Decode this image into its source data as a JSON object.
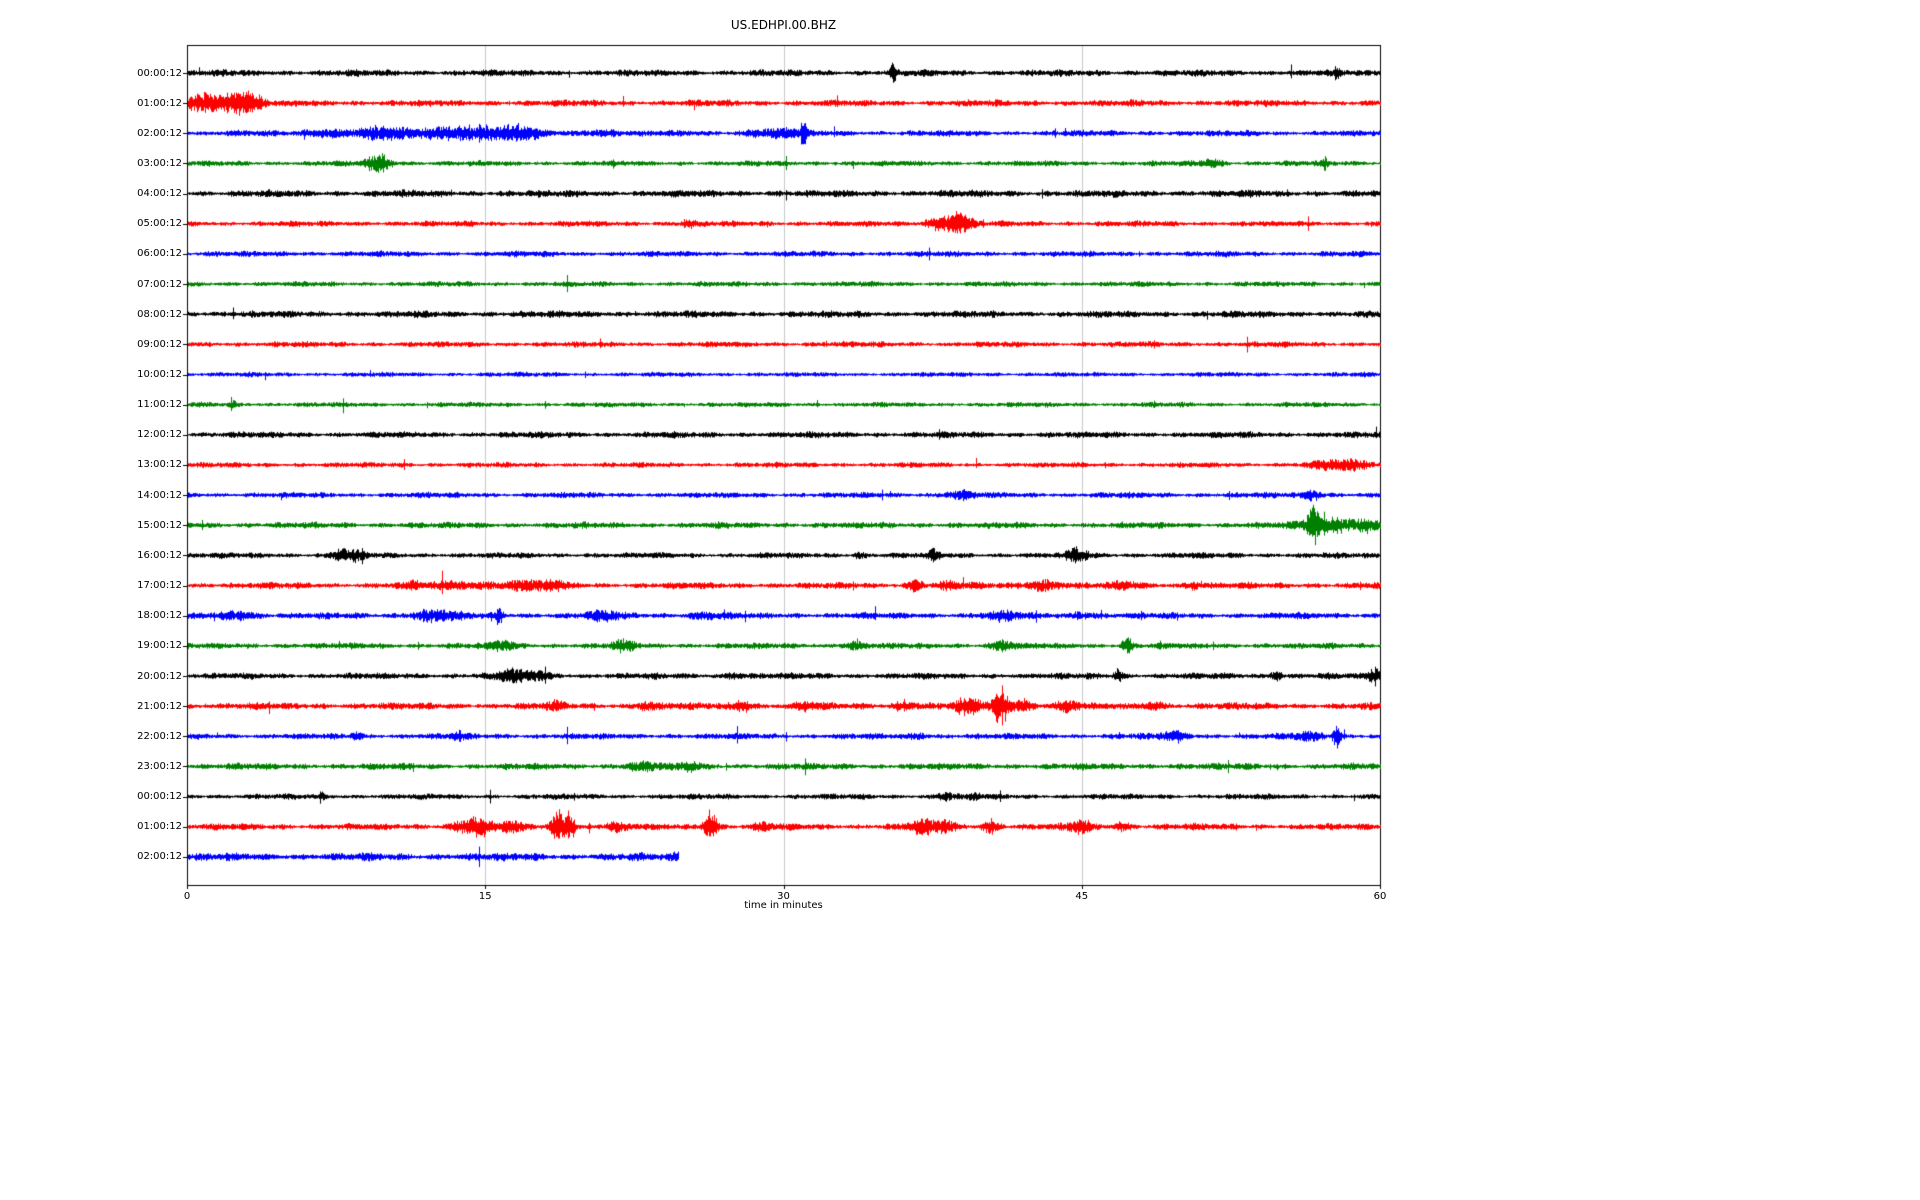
{
  "title": "US.EDHPI.00.BHZ",
  "chart_data": {
    "type": "line",
    "subtype": "seismogram-dayplot",
    "title": "US.EDHPI.00.BHZ",
    "xlabel": "time in minutes",
    "x_range": [
      0,
      60
    ],
    "x_ticks": [
      0,
      15,
      30,
      45,
      60
    ],
    "grid_x": [
      15,
      30,
      45
    ],
    "grid_color": "#c8c8c8",
    "axis_color": "#000000",
    "color_cycle": [
      "#000000",
      "#ff0000",
      "#0000ff",
      "#008000"
    ],
    "traces": [
      {
        "label": "00:00:12",
        "color": "#000000",
        "noise": 2.6,
        "events": [
          [
            35.5,
            13,
            0.12
          ],
          [
            57.8,
            5,
            0.1
          ]
        ]
      },
      {
        "label": "01:00:12",
        "color": "#ff0000",
        "noise": 2.6,
        "events": [
          [
            0.7,
            9,
            0.5
          ],
          [
            1.5,
            6,
            0.6
          ],
          [
            2.6,
            11,
            0.5
          ],
          [
            3.3,
            7,
            0.4
          ]
        ]
      },
      {
        "label": "02:00:12",
        "color": "#0000ff",
        "noise": 2.4,
        "events": [
          [
            7,
            4,
            0.8
          ],
          [
            9.8,
            6,
            1.0
          ],
          [
            12.5,
            4,
            0.8
          ],
          [
            14.6,
            8,
            1.2
          ],
          [
            16.8,
            7,
            0.7
          ],
          [
            21,
            3,
            0.8
          ],
          [
            28.8,
            4,
            0.6
          ],
          [
            30.2,
            4,
            0.5
          ],
          [
            31,
            15,
            0.1
          ]
        ]
      },
      {
        "label": "03:00:12",
        "color": "#008000",
        "noise": 2.2,
        "events": [
          [
            9.6,
            10,
            0.45
          ],
          [
            51.5,
            4,
            0.4
          ],
          [
            57.2,
            7,
            0.1
          ]
        ]
      },
      {
        "label": "04:00:12",
        "color": "#000000",
        "noise": 2.8,
        "events": []
      },
      {
        "label": "05:00:12",
        "color": "#ff0000",
        "noise": 2.3,
        "events": [
          [
            14.3,
            3,
            0.1
          ],
          [
            25.2,
            4,
            0.25
          ],
          [
            37.6,
            5,
            0.4
          ],
          [
            38.7,
            12,
            0.5
          ]
        ]
      },
      {
        "label": "06:00:12",
        "color": "#0000ff",
        "noise": 2.3,
        "events": []
      },
      {
        "label": "07:00:12",
        "color": "#008000",
        "noise": 2.1,
        "events": []
      },
      {
        "label": "08:00:12",
        "color": "#000000",
        "noise": 2.7,
        "events": []
      },
      {
        "label": "09:00:12",
        "color": "#ff0000",
        "noise": 2.3,
        "events": []
      },
      {
        "label": "10:00:12",
        "color": "#0000ff",
        "noise": 1.9,
        "events": []
      },
      {
        "label": "11:00:12",
        "color": "#008000",
        "noise": 2.0,
        "events": [
          [
            2.3,
            4,
            0.12
          ]
        ]
      },
      {
        "label": "12:00:12",
        "color": "#000000",
        "noise": 2.5,
        "events": []
      },
      {
        "label": "13:00:12",
        "color": "#ff0000",
        "noise": 2.1,
        "events": [
          [
            57.3,
            5,
            0.6
          ],
          [
            58.8,
            5,
            0.5
          ]
        ]
      },
      {
        "label": "14:00:12",
        "color": "#0000ff",
        "noise": 2.3,
        "events": [
          [
            38.9,
            4,
            0.5
          ],
          [
            56.6,
            6,
            0.3
          ]
        ]
      },
      {
        "label": "15:00:12",
        "color": "#008000",
        "noise": 2.5,
        "events": [
          [
            56.6,
            23,
            0.2
          ],
          [
            57.6,
            8,
            1.0
          ],
          [
            59.4,
            6,
            0.4
          ]
        ]
      },
      {
        "label": "16:00:12",
        "color": "#000000",
        "noise": 2.3,
        "events": [
          [
            7.7,
            7,
            0.3
          ],
          [
            8.5,
            5,
            0.3
          ],
          [
            33.8,
            3,
            0.2
          ],
          [
            37.6,
            7,
            0.2
          ],
          [
            44.8,
            8,
            0.35
          ]
        ]
      },
      {
        "label": "17:00:12",
        "color": "#ff0000",
        "noise": 2.6,
        "events": [
          [
            11.4,
            4,
            0.3
          ],
          [
            13.3,
            5,
            0.5
          ],
          [
            15,
            4,
            0.4
          ],
          [
            16.8,
            6,
            0.5
          ],
          [
            18.4,
            5,
            0.4
          ],
          [
            36.6,
            8,
            0.25
          ],
          [
            38.3,
            4,
            0.3
          ],
          [
            43,
            5,
            0.7
          ],
          [
            47.2,
            4,
            0.4
          ],
          [
            50.6,
            4,
            0.3
          ]
        ]
      },
      {
        "label": "18:00:12",
        "color": "#0000ff",
        "noise": 2.6,
        "events": [
          [
            2.6,
            4,
            0.7
          ],
          [
            12.4,
            5,
            0.8
          ],
          [
            15.7,
            11,
            0.12
          ],
          [
            21,
            4,
            0.6
          ],
          [
            26,
            3,
            0.5
          ],
          [
            41,
            4,
            0.6
          ],
          [
            45,
            3,
            0.5
          ]
        ]
      },
      {
        "label": "19:00:12",
        "color": "#008000",
        "noise": 2.4,
        "events": [
          [
            15.9,
            5,
            0.4
          ],
          [
            22,
            6,
            0.4
          ],
          [
            33.5,
            3,
            0.5
          ],
          [
            41,
            5,
            0.4
          ],
          [
            47.3,
            8,
            0.2
          ]
        ]
      },
      {
        "label": "20:00:12",
        "color": "#000000",
        "noise": 2.5,
        "events": [
          [
            16.3,
            6,
            0.5
          ],
          [
            17.6,
            5,
            0.4
          ],
          [
            27.5,
            3,
            0.3
          ],
          [
            46.8,
            6,
            0.18
          ],
          [
            54.8,
            7,
            0.18
          ],
          [
            59.7,
            9,
            0.18
          ]
        ]
      },
      {
        "label": "21:00:12",
        "color": "#ff0000",
        "noise": 2.8,
        "events": [
          [
            18.5,
            4,
            0.3
          ],
          [
            23.1,
            4,
            0.3
          ],
          [
            27.9,
            6,
            0.35
          ],
          [
            31.1,
            4,
            0.3
          ],
          [
            36.2,
            4,
            0.4
          ],
          [
            39.3,
            8,
            0.5
          ],
          [
            40.9,
            20,
            0.25
          ],
          [
            41.9,
            7,
            0.4
          ],
          [
            44.2,
            5,
            0.5
          ],
          [
            48.6,
            4,
            0.4
          ]
        ]
      },
      {
        "label": "22:00:12",
        "color": "#0000ff",
        "noise": 2.4,
        "events": [
          [
            8.5,
            4,
            0.18
          ],
          [
            13.6,
            5,
            0.18
          ],
          [
            36.8,
            3,
            0.3
          ],
          [
            49.6,
            5,
            0.45
          ],
          [
            56.4,
            4,
            0.5
          ],
          [
            57.8,
            15,
            0.12
          ]
        ]
      },
      {
        "label": "23:00:12",
        "color": "#008000",
        "noise": 2.6,
        "events": [
          [
            22.9,
            4,
            0.6
          ],
          [
            25.3,
            5,
            0.3
          ]
        ]
      },
      {
        "label": "00:00:12",
        "color": "#000000",
        "noise": 2.2,
        "events": [
          [
            6.8,
            4,
            0.1
          ],
          [
            38.1,
            4,
            0.3
          ],
          [
            39.6,
            3,
            0.2
          ]
        ]
      },
      {
        "label": "01:00:12",
        "color": "#ff0000",
        "noise": 2.6,
        "events": [
          [
            13.9,
            6,
            0.5
          ],
          [
            14.7,
            8,
            0.35
          ],
          [
            16.1,
            5,
            0.5
          ],
          [
            18.6,
            18,
            0.22
          ],
          [
            19.2,
            22,
            0.18
          ],
          [
            21.5,
            4,
            0.4
          ],
          [
            26.3,
            17,
            0.25
          ],
          [
            29,
            4,
            0.3
          ],
          [
            36.9,
            7,
            0.5
          ],
          [
            38.1,
            6,
            0.35
          ],
          [
            40.4,
            7,
            0.3
          ],
          [
            44.9,
            7,
            0.35
          ],
          [
            47,
            4,
            0.3
          ]
        ]
      },
      {
        "label": "02:00:12",
        "color": "#0000ff",
        "noise": 3.1,
        "end": 24.7,
        "events": [
          [
            24.6,
            3,
            0.15
          ]
        ]
      }
    ]
  }
}
